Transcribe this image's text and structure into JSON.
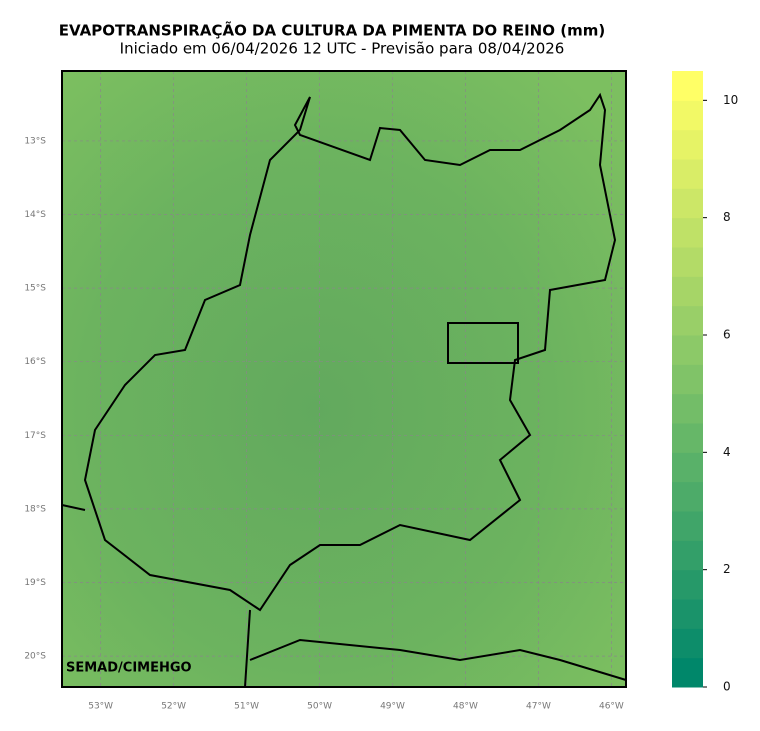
{
  "title": "EVAPOTRANSPIRAÇÃO DA CULTURA DA PIMENTA DO REINO (mm)",
  "subtitle": "Iniciado em 06/04/2026 12 UTC - Previsão para 08/04/2026",
  "credit": "SEMAD/CIMEHGO",
  "map": {
    "xlim": [
      -53.53,
      -45.8
    ],
    "ylim": [
      -20.42,
      -12.05
    ],
    "xticks": [
      {
        "value": -53,
        "label": "53°W"
      },
      {
        "value": -52,
        "label": "52°W"
      },
      {
        "value": -51,
        "label": "51°W"
      },
      {
        "value": -50,
        "label": "50°W"
      },
      {
        "value": -49,
        "label": "49°W"
      },
      {
        "value": -48,
        "label": "48°W"
      },
      {
        "value": -47,
        "label": "47°W"
      },
      {
        "value": -46,
        "label": "46°W"
      }
    ],
    "yticks": [
      {
        "value": -13,
        "label": "13°S"
      },
      {
        "value": -14,
        "label": "14°S"
      },
      {
        "value": -15,
        "label": "15°S"
      },
      {
        "value": -16,
        "label": "16°S"
      },
      {
        "value": -17,
        "label": "17°S"
      },
      {
        "value": -18,
        "label": "18°S"
      },
      {
        "value": -19,
        "label": "19°S"
      },
      {
        "value": -20,
        "label": "20°S"
      }
    ],
    "grid": true
  },
  "colorbar": {
    "lim": [
      0,
      10.5
    ],
    "ticks": [
      0,
      2,
      4,
      6,
      8,
      10
    ],
    "colors": [
      "#00876a",
      "#ffff66"
    ]
  }
}
